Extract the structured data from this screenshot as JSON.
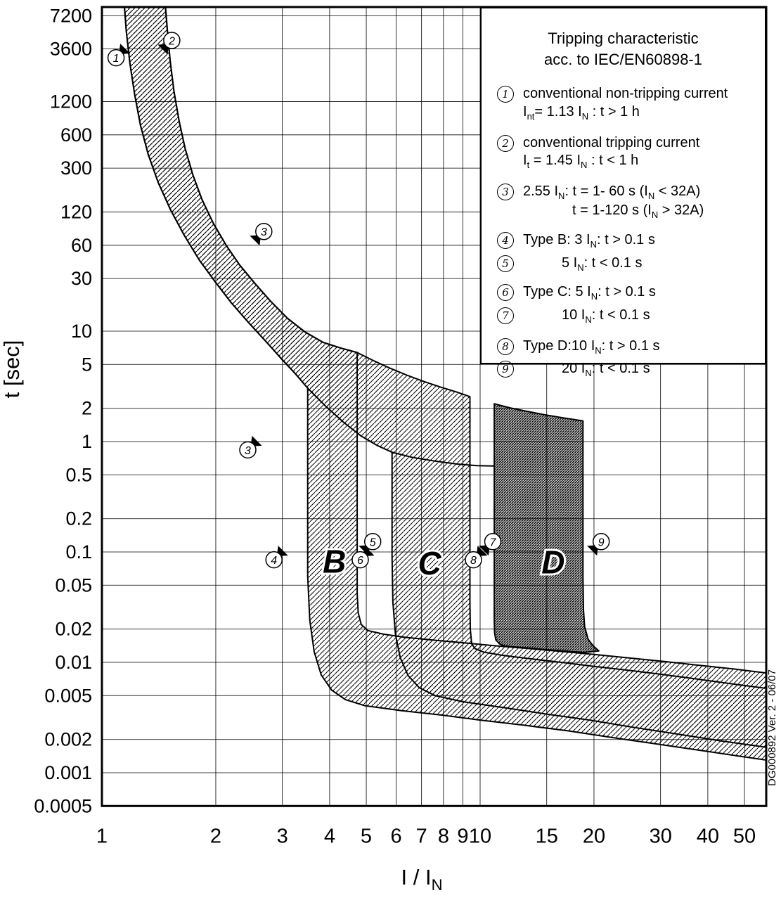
{
  "watermark": "DG000892 Ver. 2 - 06/07",
  "legend": {
    "title_line1": "Tripping characteristic",
    "title_line2": "acc. to IEC/EN60898-1",
    "items": [
      {
        "num": "1",
        "lines": [
          "conventional non-tripping current",
          "I_{nt}= 1.13 I_{N} : t > 1 h"
        ]
      },
      {
        "num": "2",
        "lines": [
          "conventional tripping current",
          "I_{t} = 1.45 I_{N} : t < 1 h"
        ]
      },
      {
        "num": "3",
        "lines": [
          "2.55 I_{N}: t = 1- 60 s (I_{N} < 32A)",
          "t = 1-120 s (I_{N} > 32A)"
        ]
      },
      {
        "num": "4",
        "lines": [
          "Type B: 3 I_{N}: t > 0.1 s"
        ]
      },
      {
        "num": "5",
        "lines": [
          "5 I_{N}: t < 0.1 s"
        ]
      },
      {
        "num": "6",
        "lines": [
          "Type C: 5 I_{N}: t > 0.1 s"
        ]
      },
      {
        "num": "7",
        "lines": [
          "10 I_{N}: t < 0.1 s"
        ]
      },
      {
        "num": "8",
        "lines": [
          "Type D:10 I_{N}: t > 0.1 s"
        ]
      },
      {
        "num": "9",
        "lines": [
          "20 I_{N}: t < 0.1 s"
        ]
      }
    ]
  },
  "chart_data": {
    "type": "area",
    "title": "Tripping characteristic acc. to IEC/EN60898-1",
    "xlabel": "I / I_{N}",
    "ylabel": "t [sec]",
    "x_ticks": [
      1,
      2,
      3,
      4,
      5,
      6,
      7,
      8,
      9,
      10,
      15,
      20,
      30,
      40,
      50
    ],
    "y_ticks": [
      7200,
      3600,
      1200,
      600,
      300,
      120,
      60,
      30,
      10,
      5,
      2,
      1,
      0.5,
      0.2,
      0.1,
      0.05,
      0.02,
      0.01,
      0.005,
      0.002,
      0.001,
      0.0005
    ],
    "x_range": [
      1,
      57.2
    ],
    "y_range": [
      0.0005,
      8600
    ],
    "grid": true,
    "bands": [
      {
        "name": "type-B",
        "hatch": "light",
        "points": [
          [
            1.145,
            9300
          ],
          [
            1.16,
            5200
          ],
          [
            1.185,
            2700
          ],
          [
            1.22,
            1400
          ],
          [
            1.265,
            730
          ],
          [
            1.325,
            400
          ],
          [
            1.41,
            220
          ],
          [
            1.52,
            125
          ],
          [
            1.65,
            74
          ],
          [
            1.81,
            44
          ],
          [
            2.0,
            27.5
          ],
          [
            2.2,
            18
          ],
          [
            2.45,
            11.8
          ],
          [
            2.72,
            8.0
          ],
          [
            3.0,
            5.5
          ],
          [
            3.25,
            4.1
          ],
          [
            3.5,
            3.05
          ],
          [
            3.5,
            0.6
          ],
          [
            3.5,
            0.06
          ],
          [
            3.545,
            0.024
          ],
          [
            3.64,
            0.0125
          ],
          [
            3.8,
            0.0077
          ],
          [
            4.05,
            0.0056
          ],
          [
            4.4,
            0.0046
          ],
          [
            4.95,
            0.00405
          ],
          [
            6.2,
            0.00365
          ],
          [
            7.8,
            0.00335
          ],
          [
            10,
            0.003
          ],
          [
            13,
            0.0027
          ],
          [
            17,
            0.0024
          ],
          [
            22,
            0.0021
          ],
          [
            29,
            0.00183
          ],
          [
            38,
            0.0016
          ],
          [
            48,
            0.00142
          ],
          [
            57.2,
            0.0013
          ],
          [
            57.2,
            0.008
          ],
          [
            47,
            0.0087
          ],
          [
            38,
            0.0094
          ],
          [
            30.5,
            0.0102
          ],
          [
            24.5,
            0.011
          ],
          [
            20,
            0.0118
          ],
          [
            16.2,
            0.0126
          ],
          [
            13.2,
            0.0134
          ],
          [
            10.8,
            0.0142
          ],
          [
            8.9,
            0.0151
          ],
          [
            7.4,
            0.016
          ],
          [
            6.3,
            0.0169
          ],
          [
            5.55,
            0.018
          ],
          [
            5.05,
            0.0194
          ],
          [
            4.85,
            0.022
          ],
          [
            4.76,
            0.028
          ],
          [
            4.73,
            0.042
          ],
          [
            4.73,
            0.4
          ],
          [
            4.73,
            6.4
          ],
          [
            4.3,
            7.0
          ],
          [
            3.85,
            7.9
          ],
          [
            3.45,
            9.8
          ],
          [
            3.1,
            13
          ],
          [
            2.8,
            18.5
          ],
          [
            2.54,
            27
          ],
          [
            2.31,
            40
          ],
          [
            2.13,
            60
          ],
          [
            1.97,
            95
          ],
          [
            1.84,
            155
          ],
          [
            1.74,
            260
          ],
          [
            1.66,
            450
          ],
          [
            1.6,
            800
          ],
          [
            1.55,
            1500
          ],
          [
            1.515,
            2800
          ],
          [
            1.49,
            5200
          ],
          [
            1.47,
            9300
          ]
        ]
      },
      {
        "name": "type-C",
        "hatch": "light",
        "points": [
          [
            1.145,
            9300
          ],
          [
            1.16,
            5200
          ],
          [
            1.185,
            2700
          ],
          [
            1.22,
            1400
          ],
          [
            1.265,
            730
          ],
          [
            1.325,
            400
          ],
          [
            1.41,
            220
          ],
          [
            1.52,
            125
          ],
          [
            1.65,
            74
          ],
          [
            1.81,
            44
          ],
          [
            2.0,
            27.5
          ],
          [
            2.2,
            18
          ],
          [
            2.45,
            11.8
          ],
          [
            2.72,
            8.0
          ],
          [
            3.0,
            5.5
          ],
          [
            3.25,
            4.1
          ],
          [
            3.5,
            3.05
          ],
          [
            3.9,
            2.1
          ],
          [
            4.35,
            1.5
          ],
          [
            4.85,
            1.12
          ],
          [
            5.35,
            0.92
          ],
          [
            5.85,
            0.8
          ],
          [
            5.85,
            0.09
          ],
          [
            5.88,
            0.035
          ],
          [
            5.97,
            0.018
          ],
          [
            6.15,
            0.011
          ],
          [
            6.45,
            0.0076
          ],
          [
            6.9,
            0.0059
          ],
          [
            7.6,
            0.005
          ],
          [
            9,
            0.0044
          ],
          [
            11.5,
            0.0039
          ],
          [
            15,
            0.0034
          ],
          [
            19.5,
            0.003
          ],
          [
            25,
            0.0026
          ],
          [
            33,
            0.00225
          ],
          [
            43,
            0.00195
          ],
          [
            57.2,
            0.0017
          ],
          [
            57.2,
            0.0058
          ],
          [
            46,
            0.0064
          ],
          [
            37,
            0.0071
          ],
          [
            30,
            0.0078
          ],
          [
            24.5,
            0.0085
          ],
          [
            20,
            0.0092
          ],
          [
            16.4,
            0.01
          ],
          [
            13.5,
            0.0108
          ],
          [
            11.4,
            0.0116
          ],
          [
            10.2,
            0.0124
          ],
          [
            9.7,
            0.0133
          ],
          [
            9.5,
            0.0147
          ],
          [
            9.42,
            0.02
          ],
          [
            9.4,
            0.035
          ],
          [
            9.4,
            0.3
          ],
          [
            9.4,
            2.55
          ],
          [
            8.7,
            2.8
          ],
          [
            7.9,
            3.1
          ],
          [
            7.1,
            3.5
          ],
          [
            6.4,
            4.0
          ],
          [
            5.75,
            4.65
          ],
          [
            5.2,
            5.45
          ],
          [
            4.73,
            6.4
          ],
          [
            4.3,
            7.0
          ],
          [
            3.85,
            7.9
          ],
          [
            3.45,
            9.8
          ],
          [
            3.1,
            13
          ],
          [
            2.8,
            18.5
          ],
          [
            2.54,
            27
          ],
          [
            2.31,
            40
          ],
          [
            2.13,
            60
          ],
          [
            1.97,
            95
          ],
          [
            1.84,
            155
          ],
          [
            1.74,
            260
          ],
          [
            1.66,
            450
          ],
          [
            1.6,
            800
          ],
          [
            1.55,
            1500
          ],
          [
            1.515,
            2800
          ],
          [
            1.49,
            5200
          ],
          [
            1.47,
            9300
          ]
        ]
      },
      {
        "name": "type-D",
        "hatch": "dark",
        "points": [
          [
            10.9,
            2.2
          ],
          [
            12,
            2.02
          ],
          [
            13.3,
            1.88
          ],
          [
            14.8,
            1.75
          ],
          [
            16.6,
            1.64
          ],
          [
            18.7,
            1.54
          ],
          [
            18.7,
            0.4
          ],
          [
            18.7,
            0.06
          ],
          [
            18.76,
            0.03
          ],
          [
            18.9,
            0.021
          ],
          [
            19.3,
            0.0162
          ],
          [
            19.9,
            0.0141
          ],
          [
            20.6,
            0.0127
          ],
          [
            18.8,
            0.0123
          ],
          [
            16.6,
            0.0127
          ],
          [
            14.4,
            0.0132
          ],
          [
            12.6,
            0.0137
          ],
          [
            11.6,
            0.0141
          ],
          [
            11.25,
            0.0147
          ],
          [
            11.0,
            0.016
          ],
          [
            10.92,
            0.0185
          ],
          [
            10.9,
            0.024
          ],
          [
            10.9,
            0.08
          ],
          [
            10.9,
            0.6
          ],
          [
            10.9,
            2.2
          ]
        ]
      }
    ],
    "extra_lines": [
      {
        "name": "type-D-lower-limit",
        "points": [
          [
            5.85,
            0.8
          ],
          [
            6.6,
            0.72
          ],
          [
            7.6,
            0.665
          ],
          [
            8.7,
            0.625
          ],
          [
            9.8,
            0.605
          ],
          [
            10.9,
            0.6
          ]
        ]
      }
    ],
    "letters": [
      {
        "text": "B",
        "x": 4.12,
        "t": 0.082
      },
      {
        "text": "C",
        "x": 7.35,
        "t": 0.079
      },
      {
        "text": "D",
        "x": 15.6,
        "t": 0.081
      }
    ],
    "markers": [
      {
        "n": "1",
        "x": 1.09,
        "t": 3000,
        "dir": "ne"
      },
      {
        "n": "2",
        "x": 1.53,
        "t": 4300,
        "dir": "sw"
      },
      {
        "n": "3",
        "x": 2.68,
        "t": 80,
        "dir": "sw"
      },
      {
        "n": "3",
        "x": 2.43,
        "t": 0.84,
        "dir": "ne"
      },
      {
        "n": "4",
        "x": 2.85,
        "t": 0.085,
        "dir": "ne"
      },
      {
        "n": "5",
        "x": 5.2,
        "t": 0.124,
        "dir": "sw"
      },
      {
        "n": "6",
        "x": 4.82,
        "t": 0.085,
        "dir": "ne"
      },
      {
        "n": "7",
        "x": 10.8,
        "t": 0.124,
        "dir": "sw"
      },
      {
        "n": "8",
        "x": 9.6,
        "t": 0.085,
        "dir": "ne"
      },
      {
        "n": "9",
        "x": 20.9,
        "t": 0.124,
        "dir": "sw"
      }
    ]
  }
}
